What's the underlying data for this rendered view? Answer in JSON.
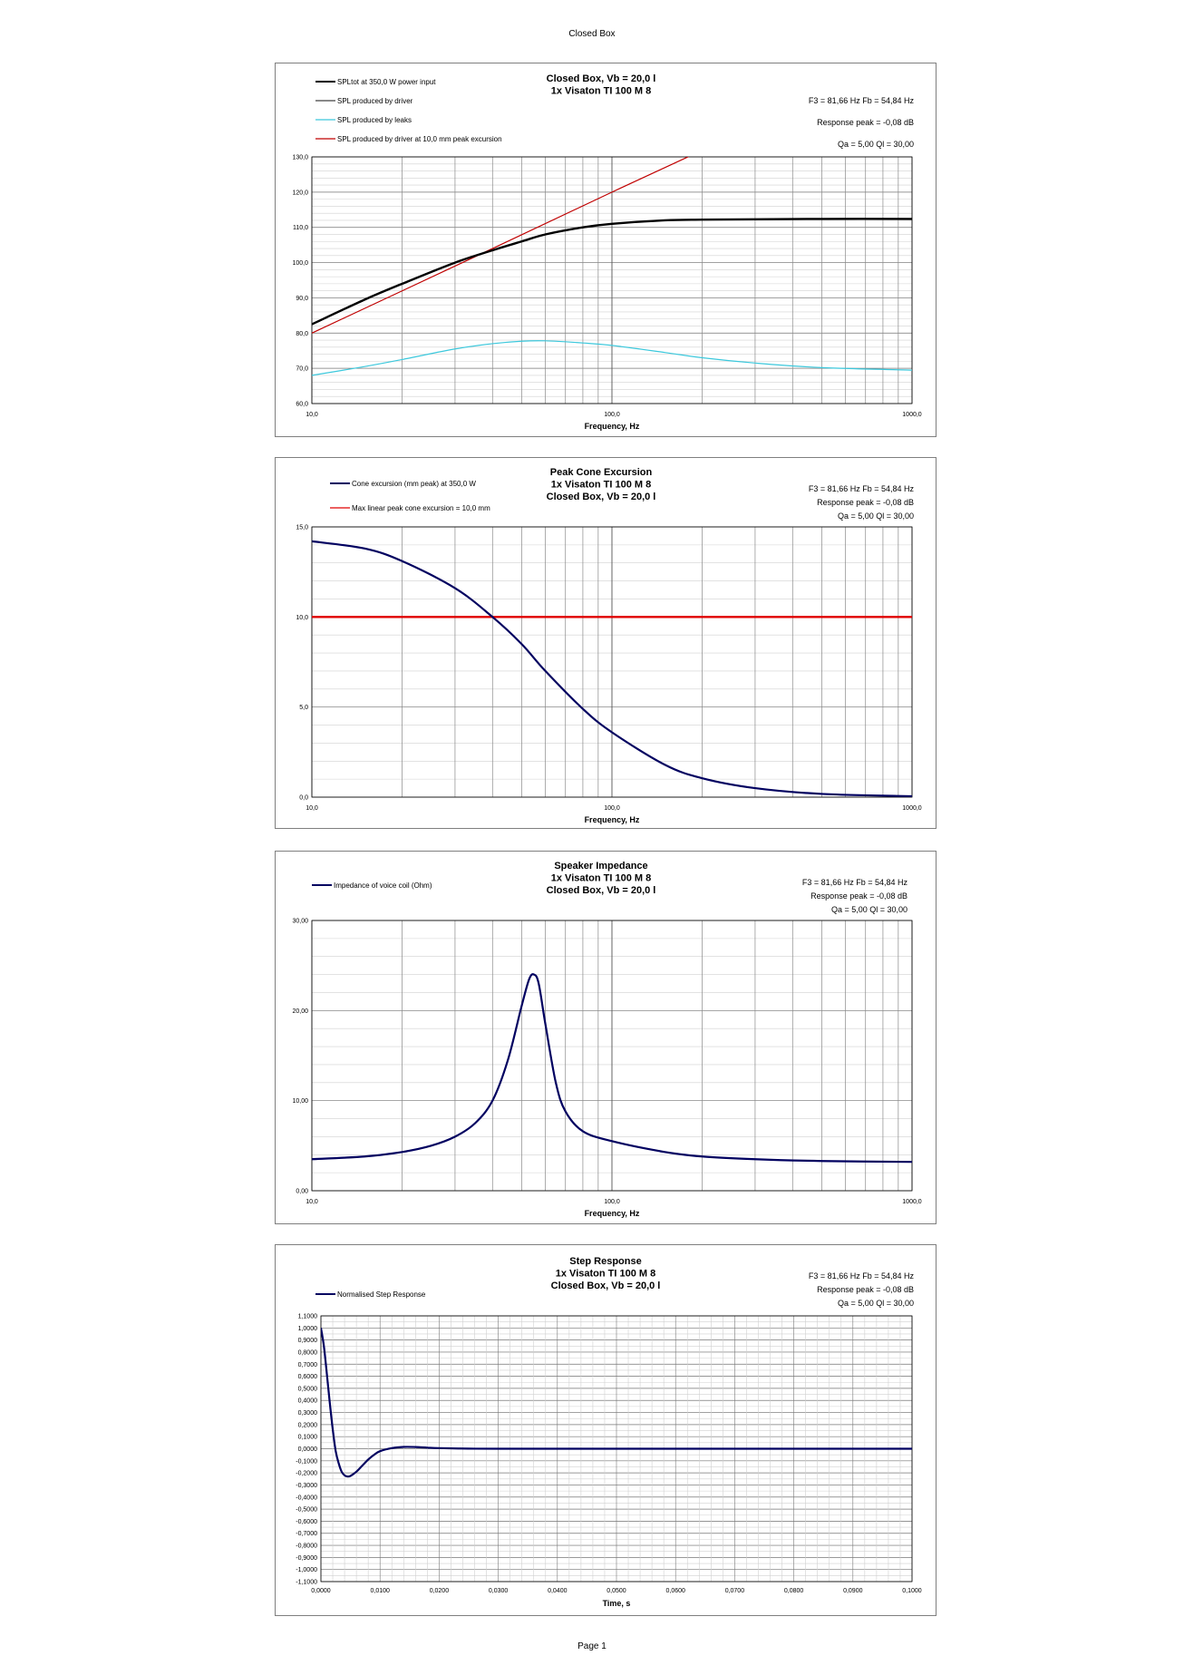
{
  "page": {
    "header": "Closed Box",
    "footer": "Page 1"
  },
  "charts": [
    {
      "id": "spl",
      "title_lines": [
        "Closed Box, Vb = 20,0 l",
        "1x Visaton TI 100 M 8"
      ],
      "info_lines": [
        "F3 = 81,66 Hz  Fb = 54,84 Hz",
        "Response peak = -0,08 dB",
        "Qa = 5,00  Ql = 30,00"
      ],
      "legend": [
        {
          "label": "SPLtot at 350,0 W power input",
          "color": "#000000"
        },
        {
          "label": "SPL produced by driver",
          "color": "#404040"
        },
        {
          "label": "SPL produced by leaks",
          "color": "#3cc8dc"
        },
        {
          "label": "SPL produced by driver at 10,0 mm peak excursion",
          "color": "#c00000"
        }
      ],
      "xlabel": "Frequency, Hz",
      "x_tick_labels": [
        "10,0",
        "100,0",
        "1000,0"
      ],
      "y_tick_labels": [
        "60,0",
        "70,0",
        "80,0",
        "90,0",
        "100,0",
        "110,0",
        "120,0",
        "130,0"
      ]
    },
    {
      "id": "excursion",
      "title_lines": [
        "Peak Cone Excursion",
        "1x Visaton TI 100 M 8",
        "Closed Box, Vb = 20,0 l"
      ],
      "info_lines": [
        "F3 = 81,66 Hz  Fb = 54,84 Hz",
        "Response peak = -0,08 dB",
        "Qa = 5,00  Ql = 30,00"
      ],
      "legend": [
        {
          "label": "Cone excursion (mm peak) at 350,0 W",
          "color": "#000060"
        },
        {
          "label": "Max linear peak cone excursion = 10,0 mm",
          "color": "#e00000"
        }
      ],
      "xlabel": "Frequency, Hz",
      "x_tick_labels": [
        "10,0",
        "100,0",
        "1000,0"
      ],
      "y_tick_labels": [
        "0,0",
        "5,0",
        "10,0",
        "15,0"
      ]
    },
    {
      "id": "impedance",
      "title_lines": [
        "Speaker Impedance",
        "1x Visaton TI 100 M 8",
        "Closed Box, Vb = 20,0 l"
      ],
      "info_lines": [
        "F3 = 81,66 Hz  Fb = 54,84 Hz",
        "Response peak = -0,08 dB",
        "Qa = 5,00  Ql = 30,00"
      ],
      "legend": [
        {
          "label": "Impedance of voice coil (Ohm)",
          "color": "#000060"
        }
      ],
      "xlabel": "Frequency, Hz",
      "x_tick_labels": [
        "10,0",
        "100,0",
        "1000,0"
      ],
      "y_tick_labels": [
        "0,00",
        "10,00",
        "20,00",
        "30,00"
      ]
    },
    {
      "id": "step",
      "title_lines": [
        "Step Response",
        "1x Visaton TI 100 M 8",
        "Closed Box, Vb = 20,0 l"
      ],
      "info_lines": [
        "F3 = 81,66 Hz  Fb = 54,84 Hz",
        "Response peak = -0,08 dB",
        "Qa = 5,00  Ql = 30,00"
      ],
      "legend": [
        {
          "label": "Normalised Step Response",
          "color": "#000060"
        }
      ],
      "xlabel": "Time, s",
      "x_tick_labels": [
        "0,0000",
        "0,0100",
        "0,0200",
        "0,0300",
        "0,0400",
        "0,0500",
        "0,0600",
        "0,0700",
        "0,0800",
        "0,0900",
        "0,1000"
      ],
      "y_tick_labels": [
        "-1,1000",
        "-1,0000",
        "-0,9000",
        "-0,8000",
        "-0,7000",
        "-0,6000",
        "-0,5000",
        "-0,4000",
        "-0,3000",
        "-0,2000",
        "-0,1000",
        "0,0000",
        "0,1000",
        "0,2000",
        "0,3000",
        "0,4000",
        "0,5000",
        "0,6000",
        "0,7000",
        "0,8000",
        "0,9000",
        "1,0000",
        "1,1000"
      ]
    }
  ],
  "chart_data": [
    {
      "type": "line",
      "title": "Closed Box, Vb = 20,0 l",
      "xlabel": "Frequency, Hz",
      "ylabel": "",
      "x_scale": "log",
      "xlim": [
        10,
        1000
      ],
      "ylim": [
        60,
        130
      ],
      "grid": true,
      "legend_position": "top-left",
      "series": [
        {
          "name": "SPLtot at 350,0 W power input",
          "color": "#000000",
          "x": [
            10,
            15,
            20,
            30,
            40,
            50,
            60,
            80,
            100,
            150,
            200,
            300,
            500,
            1000
          ],
          "y": [
            82.5,
            89.5,
            94,
            100,
            103.5,
            106,
            108,
            110,
            111,
            112,
            112.2,
            112.3,
            112.4,
            112.4
          ]
        },
        {
          "name": "SPL produced by driver",
          "color": "#404040",
          "x": [
            10,
            15,
            20,
            30,
            40,
            50,
            60,
            80,
            100,
            150,
            200,
            300,
            500,
            1000
          ],
          "y": [
            82.5,
            89.5,
            94,
            100,
            103.5,
            106,
            108,
            110,
            111,
            112,
            112.2,
            112.3,
            112.4,
            112.4
          ]
        },
        {
          "name": "SPL produced by leaks",
          "color": "#3cc8dc",
          "x": [
            10,
            15,
            20,
            30,
            40,
            50,
            60,
            80,
            100,
            150,
            200,
            300,
            500,
            1000
          ],
          "y": [
            68,
            70.5,
            72.5,
            75.5,
            77,
            77.7,
            77.8,
            77.2,
            76.5,
            74.5,
            73,
            71.5,
            70.2,
            69.5
          ]
        },
        {
          "name": "SPL produced by driver at 10,0 mm peak excursion",
          "color": "#c00000",
          "x": [
            10,
            40,
            100,
            190
          ],
          "y": [
            80,
            104,
            120,
            131
          ]
        }
      ]
    },
    {
      "type": "line",
      "title": "Peak Cone Excursion",
      "xlabel": "Frequency, Hz",
      "ylabel": "",
      "x_scale": "log",
      "xlim": [
        10,
        1000
      ],
      "ylim": [
        0,
        15
      ],
      "grid": true,
      "legend_position": "top-left",
      "series": [
        {
          "name": "Cone excursion (mm peak) at 350,0 W",
          "color": "#000060",
          "x": [
            10,
            15,
            20,
            30,
            40,
            50,
            60,
            80,
            100,
            150,
            200,
            300,
            500,
            1000
          ],
          "y": [
            14.2,
            13.8,
            13.1,
            11.6,
            10.0,
            8.5,
            7.0,
            4.9,
            3.6,
            1.8,
            1.05,
            0.5,
            0.18,
            0.05
          ]
        },
        {
          "name": "Max linear peak cone excursion = 10,0 mm",
          "color": "#e00000",
          "x": [
            10,
            1000
          ],
          "y": [
            10,
            10
          ]
        }
      ]
    },
    {
      "type": "line",
      "title": "Speaker Impedance",
      "xlabel": "Frequency, Hz",
      "ylabel": "",
      "x_scale": "log",
      "xlim": [
        10,
        1000
      ],
      "ylim": [
        0,
        30
      ],
      "grid": true,
      "legend_position": "top-left",
      "series": [
        {
          "name": "Impedance of voice coil (Ohm)",
          "color": "#000060",
          "x": [
            10,
            15,
            20,
            25,
            30,
            35,
            40,
            45,
            50,
            53,
            55,
            57,
            60,
            65,
            70,
            80,
            100,
            150,
            200,
            300,
            500,
            1000
          ],
          "y": [
            3.5,
            3.8,
            4.3,
            5.0,
            6.0,
            7.5,
            10.0,
            14.5,
            20.5,
            23.5,
            24.0,
            23.0,
            18.5,
            12.0,
            8.8,
            6.6,
            5.5,
            4.3,
            3.8,
            3.5,
            3.3,
            3.2
          ]
        }
      ]
    },
    {
      "type": "line",
      "title": "Step Response",
      "xlabel": "Time, s",
      "ylabel": "",
      "xlim": [
        0,
        0.1
      ],
      "ylim": [
        -1.1,
        1.1
      ],
      "grid": true,
      "legend_position": "top-left",
      "series": [
        {
          "name": "Normalised Step Response",
          "color": "#000060",
          "x": [
            0,
            0.0005,
            0.001,
            0.0015,
            0.002,
            0.0025,
            0.003,
            0.0035,
            0.004,
            0.0045,
            0.005,
            0.006,
            0.007,
            0.008,
            0.009,
            0.01,
            0.012,
            0.014,
            0.016,
            0.018,
            0.02,
            0.025,
            0.03,
            0.05,
            0.1
          ],
          "y": [
            1.0,
            0.85,
            0.62,
            0.38,
            0.16,
            -0.02,
            -0.12,
            -0.19,
            -0.22,
            -0.23,
            -0.225,
            -0.19,
            -0.14,
            -0.09,
            -0.05,
            -0.02,
            0.005,
            0.015,
            0.014,
            0.009,
            0.005,
            0.001,
            0,
            0,
            0
          ]
        }
      ]
    }
  ]
}
